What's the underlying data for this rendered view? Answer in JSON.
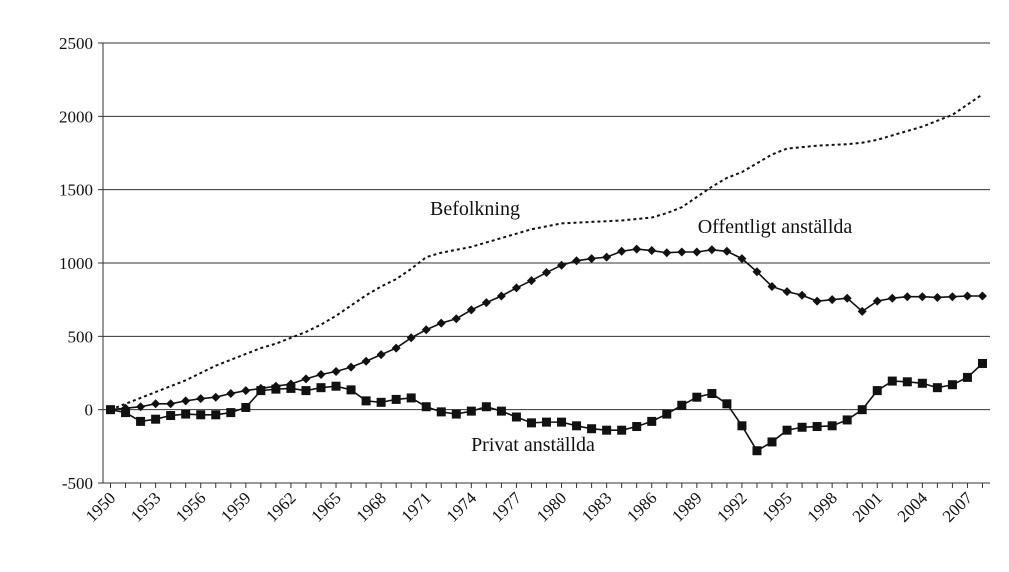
{
  "chart_data": {
    "type": "line",
    "x": [
      1950,
      1951,
      1952,
      1953,
      1954,
      1955,
      1956,
      1957,
      1958,
      1959,
      1960,
      1961,
      1962,
      1963,
      1964,
      1965,
      1966,
      1967,
      1968,
      1969,
      1970,
      1971,
      1972,
      1973,
      1974,
      1975,
      1976,
      1977,
      1978,
      1979,
      1980,
      1981,
      1982,
      1983,
      1984,
      1985,
      1986,
      1987,
      1988,
      1989,
      1990,
      1991,
      1992,
      1993,
      1994,
      1995,
      1996,
      1997,
      1998,
      1999,
      2000,
      2001,
      2002,
      2003,
      2004,
      2005,
      2006,
      2007,
      2008
    ],
    "xlim": [
      1949.5,
      2008.5
    ],
    "xticks": [
      1950,
      1953,
      1956,
      1959,
      1962,
      1965,
      1968,
      1971,
      1974,
      1977,
      1980,
      1983,
      1986,
      1989,
      1992,
      1995,
      1998,
      2001,
      2004,
      2007
    ],
    "ylim": [
      -500,
      2500
    ],
    "yticks": [
      -500,
      0,
      500,
      1000,
      1500,
      2000,
      2500
    ],
    "grid": true,
    "series": [
      {
        "name": "Befolkning",
        "color": "#111111",
        "style": "dotted",
        "marker": "none",
        "values": [
          0,
          40,
          80,
          120,
          160,
          200,
          250,
          300,
          340,
          380,
          420,
          450,
          490,
          530,
          580,
          640,
          710,
          780,
          840,
          890,
          960,
          1040,
          1070,
          1090,
          1110,
          1140,
          1170,
          1200,
          1230,
          1250,
          1270,
          1275,
          1280,
          1285,
          1290,
          1300,
          1310,
          1340,
          1380,
          1450,
          1520,
          1580,
          1620,
          1680,
          1740,
          1780,
          1790,
          1800,
          1805,
          1810,
          1820,
          1840,
          1870,
          1900,
          1930,
          1970,
          2010,
          2080,
          2150
        ]
      },
      {
        "name": "Offentligt anställda",
        "color": "#111111",
        "style": "solid",
        "marker": "diamond",
        "values": [
          0,
          10,
          20,
          40,
          40,
          60,
          75,
          85,
          110,
          130,
          145,
          160,
          175,
          210,
          240,
          260,
          290,
          330,
          375,
          420,
          490,
          545,
          590,
          620,
          680,
          730,
          775,
          830,
          880,
          935,
          985,
          1015,
          1030,
          1040,
          1080,
          1095,
          1085,
          1070,
          1075,
          1075,
          1090,
          1080,
          1030,
          940,
          840,
          805,
          780,
          740,
          750,
          760,
          670,
          740,
          760,
          770,
          770,
          765,
          770,
          775,
          775
        ]
      },
      {
        "name": "Privat anställda",
        "color": "#111111",
        "style": "solid",
        "marker": "square",
        "values": [
          0,
          -20,
          -80,
          -65,
          -40,
          -30,
          -35,
          -35,
          -20,
          15,
          130,
          140,
          145,
          130,
          150,
          160,
          135,
          60,
          50,
          70,
          80,
          20,
          -15,
          -30,
          -10,
          20,
          -10,
          -50,
          -90,
          -85,
          -85,
          -110,
          -130,
          -140,
          -140,
          -115,
          -80,
          -30,
          30,
          85,
          110,
          40,
          -110,
          -280,
          -220,
          -140,
          -120,
          -115,
          -110,
          -70,
          0,
          130,
          195,
          190,
          180,
          150,
          170,
          220,
          315
        ]
      }
    ]
  }
}
